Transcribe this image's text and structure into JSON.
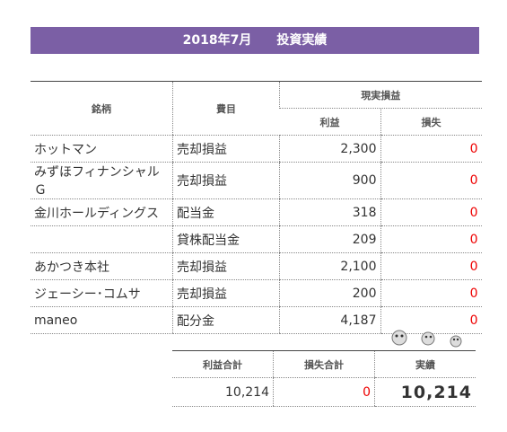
{
  "header": {
    "title": "2018年7月　　投資実績"
  },
  "table": {
    "columns": {
      "name": "銘柄",
      "item": "費目",
      "group": "現実損益",
      "profit": "利益",
      "loss": "損失"
    },
    "rows": [
      {
        "name": "ホットマン",
        "item": "売却損益",
        "profit": "2,300",
        "loss": "0"
      },
      {
        "name": "みずほフィナンシャルＧ",
        "item": "売却損益",
        "profit": "900",
        "loss": "0"
      },
      {
        "name": "金川ホールディングス",
        "item": "配当金",
        "profit": "318",
        "loss": "0"
      },
      {
        "item": "貸株配当金",
        "profit": "209",
        "loss": "0"
      },
      {
        "name": "あかつき本社",
        "item": "売却損益",
        "profit": "2,100",
        "loss": "0"
      },
      {
        "name": "ジェーシー･コムサ",
        "item": "売却損益",
        "profit": "200",
        "loss": "0"
      },
      {
        "name": "maneo",
        "item": "配分金",
        "profit": "4,187",
        "loss": "0"
      }
    ]
  },
  "summary": {
    "columns": [
      "利益合計",
      "損失合計",
      "実績"
    ],
    "values": [
      "10,214",
      "0",
      "10,214"
    ]
  }
}
